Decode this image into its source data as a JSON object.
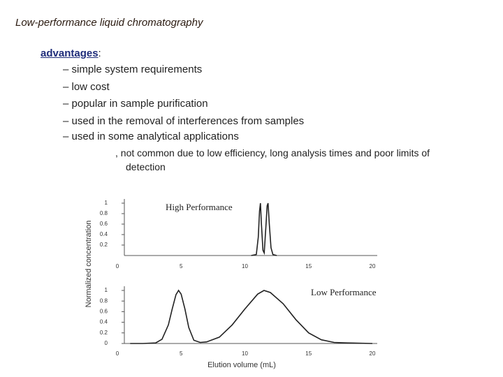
{
  "slide": {
    "title": "Low-performance liquid chromatography",
    "heading": "advantages",
    "heading_suffix": ":",
    "bullets": [
      "– simple system requirements",
      "– low cost",
      "– popular in sample purification",
      "– used in the removal of interferences from samples",
      "– used in some analytical applications"
    ],
    "note": [
      ", not common due to low efficiency, long analysis times and poor limits of",
      "detection"
    ]
  },
  "figure": {
    "y_label": "Normalized concentration",
    "x_label": "Elution volume (mL)",
    "panels": [
      {
        "title": "High Performance",
        "x": [
          10.5,
          10.9,
          11.05,
          11.15,
          11.22,
          11.3,
          11.42,
          11.52,
          11.65,
          11.75,
          11.82,
          11.92,
          12.05,
          12.2,
          12.5
        ],
        "values": [
          0,
          0.02,
          0.35,
          0.85,
          1,
          0.6,
          0.1,
          0.05,
          0.55,
          0.95,
          1,
          0.6,
          0.15,
          0.02,
          0
        ],
        "xlim": [
          0,
          20
        ],
        "ylim": [
          0,
          1
        ],
        "xticks": [
          0,
          5,
          10,
          15,
          20
        ],
        "yticks": [
          0.2,
          0.4,
          0.6,
          0.8,
          1
        ]
      },
      {
        "title": "Low Performance",
        "x": [
          1,
          2,
          3,
          3.5,
          4,
          4.3,
          4.6,
          4.8,
          5,
          5.3,
          5.6,
          6,
          6.5,
          7,
          8,
          9,
          10,
          11,
          11.5,
          12,
          13,
          14,
          15,
          16,
          17,
          18,
          20
        ],
        "values": [
          0,
          0,
          0.01,
          0.08,
          0.35,
          0.65,
          0.92,
          1,
          0.93,
          0.65,
          0.3,
          0.06,
          0.02,
          0.03,
          0.12,
          0.35,
          0.65,
          0.93,
          1,
          0.96,
          0.75,
          0.45,
          0.2,
          0.07,
          0.02,
          0.01,
          0
        ],
        "xlim": [
          0,
          20
        ],
        "ylim": [
          0,
          1
        ],
        "xticks": [
          0,
          5,
          10,
          15,
          20
        ],
        "yticks": [
          0,
          0.2,
          0.4,
          0.6,
          0.8,
          1
        ]
      }
    ]
  }
}
